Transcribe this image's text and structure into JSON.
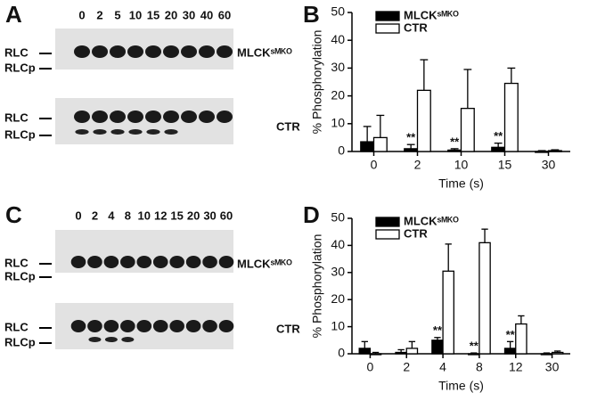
{
  "panels": [
    {
      "label": "A",
      "lanes": [
        "0",
        "2",
        "5",
        "10",
        "15",
        "20",
        "30",
        "40",
        "60"
      ],
      "rows": [
        {
          "bands": [
            "RLC",
            "RLCp"
          ],
          "name": "MLCKˢᴹᴷᴼ"
        },
        {
          "bands": [
            "RLC",
            "RLCp"
          ],
          "name": "CTR"
        }
      ]
    },
    {
      "label": "C",
      "lanes": [
        "0",
        "2",
        "4",
        "8",
        "10",
        "12",
        "15",
        "20",
        "30",
        "60"
      ],
      "rows": [
        {
          "bands": [
            "RLC",
            "RLCp"
          ],
          "name": "MLCKˢᴹᴷᴼ"
        },
        {
          "bands": [
            "RLC",
            "RLCp"
          ],
          "name": "CTR"
        }
      ]
    }
  ],
  "chart_data": [
    {
      "type": "bar",
      "panel": "B",
      "xlabel": "Time (s)",
      "ylabel": "% Phosphorylation",
      "categories": [
        "0",
        "2",
        "10",
        "15",
        "30"
      ],
      "series": [
        {
          "name": "MLCKˢᴹᴷᴼ",
          "color": "#000000",
          "values": [
            3.5,
            1,
            0.5,
            1.5,
            0
          ],
          "errors": [
            5.5,
            1.5,
            0.5,
            1.5,
            0.3
          ],
          "annotations": [
            null,
            "**",
            "**",
            "**",
            null
          ]
        },
        {
          "name": "CTR",
          "color": "#ffffff",
          "values": [
            5,
            22,
            15.5,
            24.5,
            0.3
          ],
          "errors": [
            8,
            11,
            14,
            5.5,
            0.3
          ]
        }
      ],
      "ylim": [
        0,
        50
      ],
      "yticks": [
        0,
        10,
        20,
        30,
        40,
        50
      ]
    },
    {
      "type": "bar",
      "panel": "D",
      "xlabel": "Time (s)",
      "ylabel": "% Phosphorylation",
      "categories": [
        "0",
        "2",
        "4",
        "8",
        "12",
        "30"
      ],
      "series": [
        {
          "name": "MLCKˢᴹᴷᴼ",
          "color": "#000000",
          "values": [
            2,
            0.5,
            5,
            0,
            2,
            0
          ],
          "errors": [
            2.5,
            1,
            1,
            0.3,
            2.5,
            0.3
          ],
          "annotations": [
            null,
            null,
            "**",
            "**",
            "**",
            null
          ]
        },
        {
          "name": "CTR",
          "color": "#ffffff",
          "values": [
            0,
            2,
            30.5,
            41,
            11,
            0.5
          ],
          "errors": [
            0.5,
            2.5,
            10,
            5,
            3,
            0.5
          ]
        }
      ],
      "ylim": [
        0,
        50
      ],
      "yticks": [
        0,
        10,
        20,
        30,
        40,
        50
      ]
    }
  ]
}
